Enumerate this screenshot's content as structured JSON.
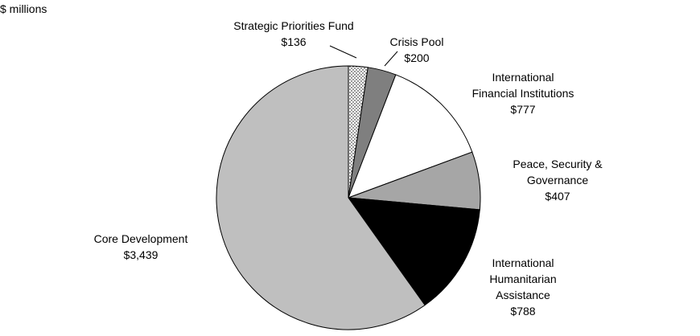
{
  "chart_data": {
    "type": "pie",
    "unit_label": "$ millions",
    "slices": [
      {
        "name": "Strategic Priorities Fund",
        "value": 136,
        "value_label": "$136",
        "color": "#ffffff",
        "pattern": "dots"
      },
      {
        "name": "Crisis Pool",
        "value": 200,
        "value_label": "$200",
        "color": "#7f7f7f"
      },
      {
        "name": "International Financial Institutions",
        "value": 777,
        "value_label": "$777",
        "color": "#ffffff"
      },
      {
        "name": "Peace, Security & Governance",
        "value": 407,
        "value_label": "$407",
        "color": "#a6a6a6"
      },
      {
        "name": "International Humanitarian Assistance",
        "value": 788,
        "value_label": "$788",
        "color": "#000000"
      },
      {
        "name": "Core Development",
        "value": 3439,
        "value_label": "$3,439",
        "color": "#bfbfbf"
      }
    ],
    "labels": [
      {
        "lines": [
          "Strategic Priorities Fund",
          "$136"
        ]
      },
      {
        "lines": [
          "Crisis Pool",
          "$200"
        ]
      },
      {
        "lines": [
          "International",
          "Financial Institutions",
          "$777"
        ]
      },
      {
        "lines": [
          "Peace, Security &",
          "Governance",
          "$407"
        ]
      },
      {
        "lines": [
          "International",
          "Humanitarian",
          "Assistance",
          "$788"
        ]
      },
      {
        "lines": [
          "Core Development",
          "$3,439"
        ]
      }
    ]
  }
}
